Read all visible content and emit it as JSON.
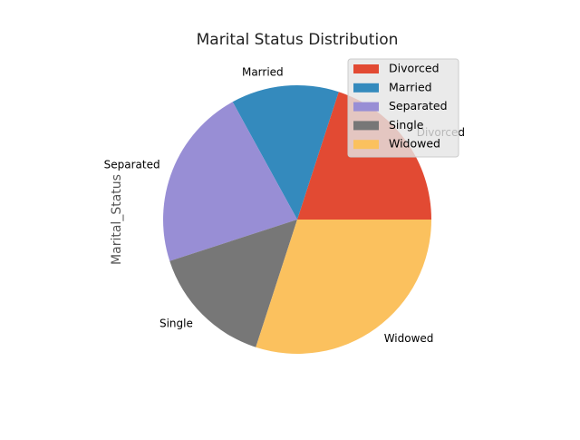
{
  "chart_data": {
    "type": "pie",
    "title": "Marital Status Distribution",
    "ylabel": "Marital_Status",
    "categories": [
      "Divorced",
      "Married",
      "Separated",
      "Single",
      "Widowed"
    ],
    "values": [
      20,
      13,
      22,
      15,
      30
    ],
    "colors": [
      "#E24A33",
      "#348ABD",
      "#988ED5",
      "#777777",
      "#FBC15E"
    ],
    "start_angle_deg": 0,
    "direction": "counterclockwise",
    "legend": {
      "position": "upper-right",
      "entries": [
        "Divorced",
        "Married",
        "Separated",
        "Single",
        "Widowed"
      ]
    }
  }
}
